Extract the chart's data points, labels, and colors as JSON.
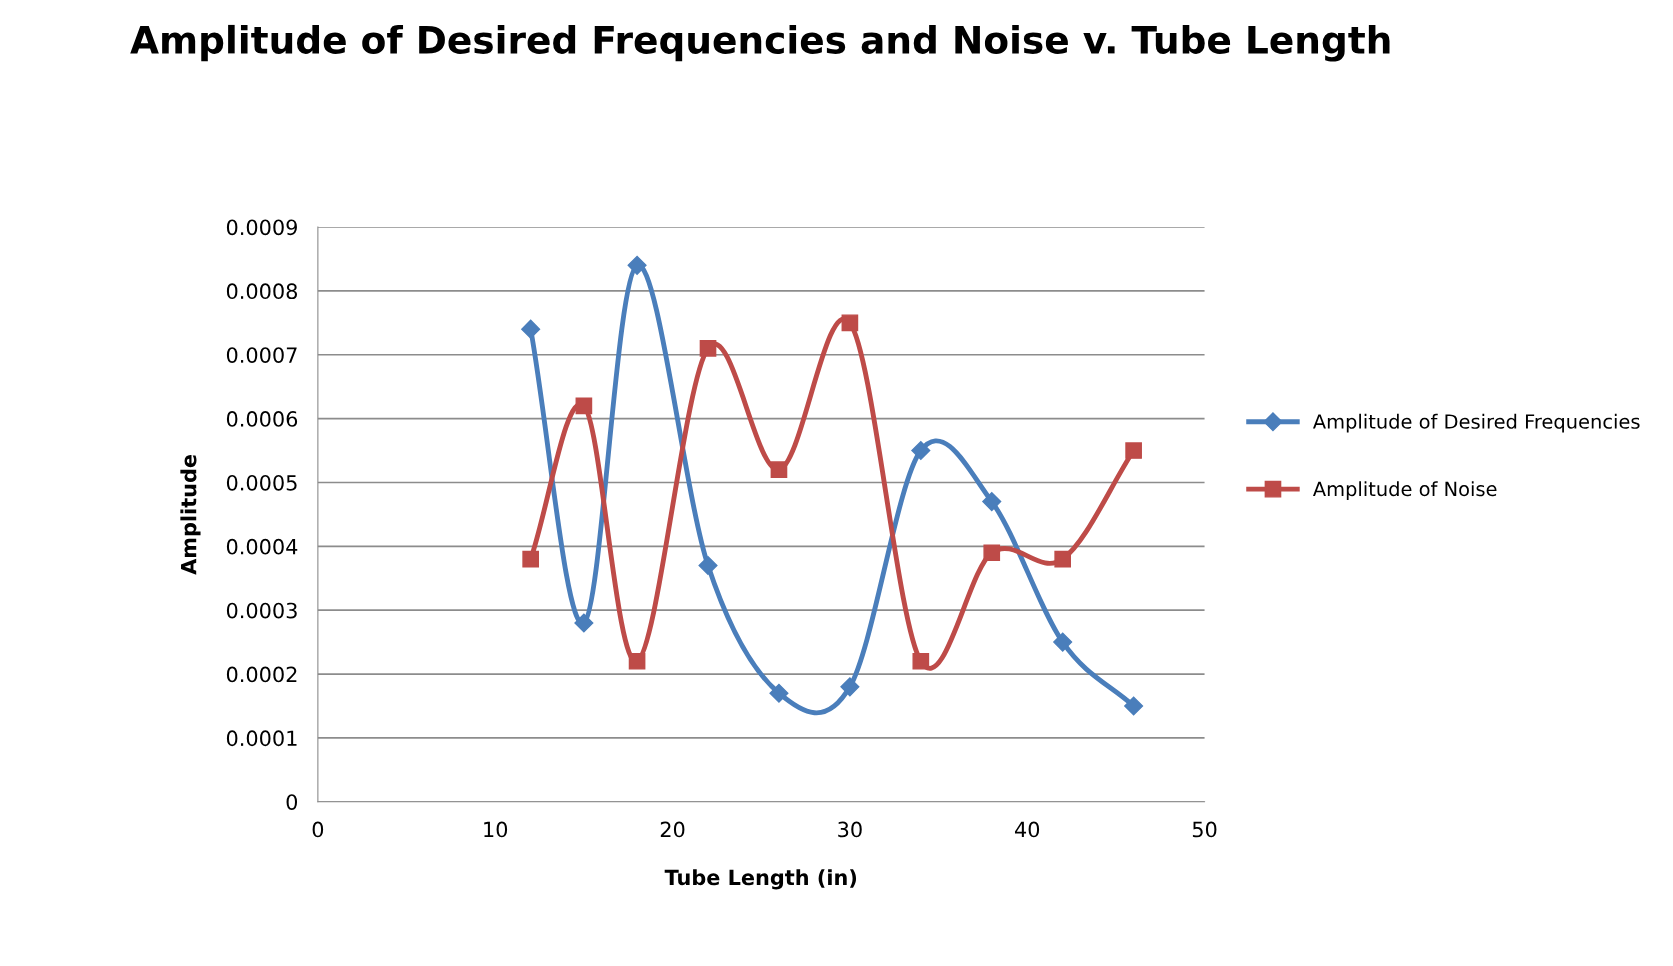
{
  "chart_data": {
    "type": "line",
    "title": "Amplitude of Desired Frequencies and Noise v. Tube Length",
    "xlabel": "Tube Length (in)",
    "ylabel": "Amplitude",
    "x": [
      12,
      15,
      18,
      22,
      26,
      30,
      34,
      38,
      42,
      46
    ],
    "series": [
      {
        "name": "Amplitude of Desired Frequencies",
        "color": "#4a7ebb",
        "marker": "diamond",
        "values": [
          0.00074,
          0.00028,
          0.00084,
          0.00037,
          0.00017,
          0.00018,
          0.00055,
          0.00047,
          0.00025,
          0.00015
        ]
      },
      {
        "name": "Amplitude of Noise",
        "color": "#be4b48",
        "marker": "square",
        "values": [
          0.00038,
          0.00062,
          0.00022,
          0.00071,
          0.00052,
          0.00075,
          0.00022,
          0.00039,
          0.00038,
          0.00055
        ]
      }
    ],
    "xlim": [
      0,
      50
    ],
    "xticks": [
      0,
      10,
      20,
      30,
      40,
      50
    ],
    "ylim": [
      0,
      0.0009
    ],
    "yticks": [
      {
        "value": 0,
        "label": "0"
      },
      {
        "value": 0.0001,
        "label": "0.0001"
      },
      {
        "value": 0.0002,
        "label": "0.0002"
      },
      {
        "value": 0.0003,
        "label": "0.0003"
      },
      {
        "value": 0.0004,
        "label": "0.0004"
      },
      {
        "value": 0.0005,
        "label": "0.0005"
      },
      {
        "value": 0.0006,
        "label": "0.0006"
      },
      {
        "value": 0.0007,
        "label": "0.0007"
      },
      {
        "value": 0.0008,
        "label": "0.0008"
      },
      {
        "value": 0.0009,
        "label": "0.0009"
      }
    ],
    "grid": "y",
    "legend": "right",
    "line_style": "solid"
  }
}
